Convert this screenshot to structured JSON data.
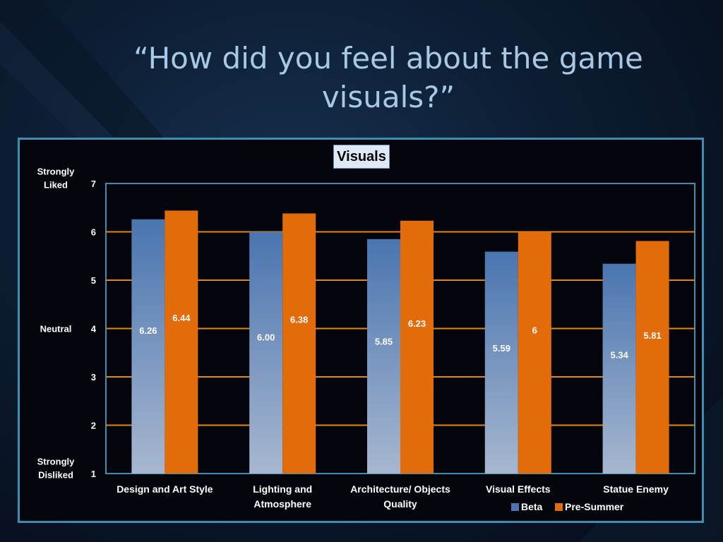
{
  "slide": {
    "title": "“How did you feel about the game visuals?”"
  },
  "colors": {
    "beta_top": "#4a75b0",
    "beta_bottom": "#a7b7cf",
    "presummer": "#e36c0a",
    "gridline": "#e5850f",
    "frame": "#3d8fb0"
  },
  "chart_data": {
    "type": "bar",
    "title": "Visuals",
    "categories": [
      [
        "Design and Art Style"
      ],
      [
        "Lighting and",
        "Atmosphere"
      ],
      [
        "Architecture/ Objects",
        "Quality"
      ],
      [
        "Visual Effects"
      ],
      [
        "Statue Enemy"
      ]
    ],
    "series": [
      {
        "name": "Beta",
        "values": [
          6.26,
          6.0,
          5.85,
          5.59,
          5.34
        ],
        "labels": [
          "6.26",
          "6.00",
          "5.85",
          "5.59",
          "5.34"
        ]
      },
      {
        "name": "Pre-Summer",
        "values": [
          6.44,
          6.38,
          6.23,
          6,
          5.81
        ],
        "labels": [
          "6.44",
          "6.38",
          "6.23",
          "6",
          "5.81"
        ]
      }
    ],
    "ylim": [
      1,
      7
    ],
    "yticks": [
      1,
      2,
      3,
      4,
      5,
      6,
      7
    ],
    "y_category_labels": [
      {
        "lines": [
          "Strongly",
          "Liked"
        ],
        "at": 7
      },
      {
        "lines": [
          "Neutral"
        ],
        "at": 4
      },
      {
        "lines": [
          "Strongly",
          "Disliked"
        ],
        "at": 1
      }
    ],
    "grid": true,
    "legend": "bottom-right"
  }
}
